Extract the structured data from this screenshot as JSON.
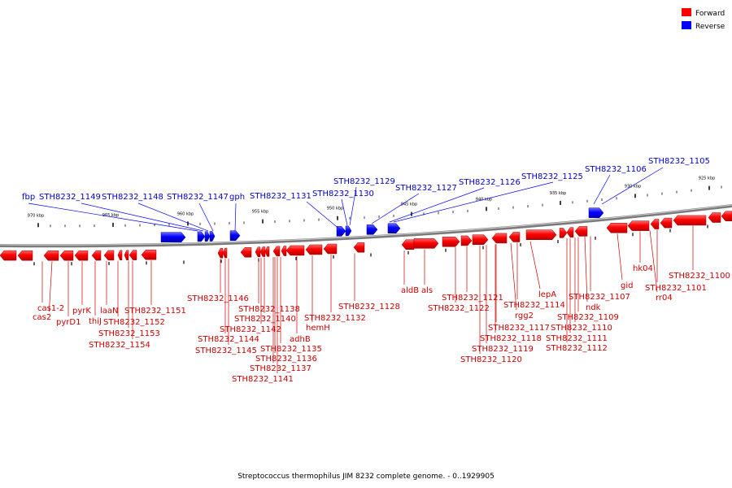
{
  "legend": [
    {
      "label": "Forward",
      "color": "#ff0000"
    },
    {
      "label": "Reverse",
      "color": "#0000ff"
    }
  ],
  "caption": "Streptococcus thermophilus JIM 8232 complete genome. - 0..1929905",
  "scale_ticks": [
    "970 kbp",
    "965 kbp",
    "960 kbp",
    "955 kbp",
    "950 kbp",
    "945 kbp",
    "940 kbp",
    "935 kbp",
    "930 kbp",
    "925 kbp"
  ],
  "reverse_labels": [
    "fbp",
    "STH8232_1149",
    "STH8232_1148",
    "STH8232_1147",
    "gph",
    "STH8232_1131",
    "STH8232_1129",
    "STH8232_1130",
    "STH8232_1127",
    "STH8232_1126",
    "STH8232_1125",
    "STH8232_1106",
    "STH8232_1105"
  ],
  "forward_labels": [
    "cas1-2",
    "cas2",
    "pyrD1",
    "pyrK",
    "thiJ",
    "laaN",
    "STH8232_1151",
    "STH8232_1152",
    "STH8232_1153",
    "STH8232_1154",
    "STH8232_1146",
    "STH8232_1138",
    "STH8232_1140",
    "STH8232_1142",
    "STH8232_1144",
    "STH8232_1145",
    "STH8232_1135",
    "STH8232_1136",
    "STH8232_1137",
    "STH8232_1141",
    "adhB",
    "hemH",
    "STH8232_1132",
    "STH8232_1128",
    "aldB",
    "als",
    "STH8232_1121",
    "STH8232_1122",
    "STH8232_1117",
    "STH8232_1118",
    "STH8232_1119",
    "STH8232_1120",
    "lepA",
    "STH8232_1114",
    "rgg2",
    "STH8232_1107",
    "ndk",
    "STH8232_1109",
    "STH8232_1110",
    "STH8232_1111",
    "STH8232_1112",
    "gid",
    "hk04",
    "STH8232_1101",
    "rr04",
    "STH8232_1100"
  ]
}
